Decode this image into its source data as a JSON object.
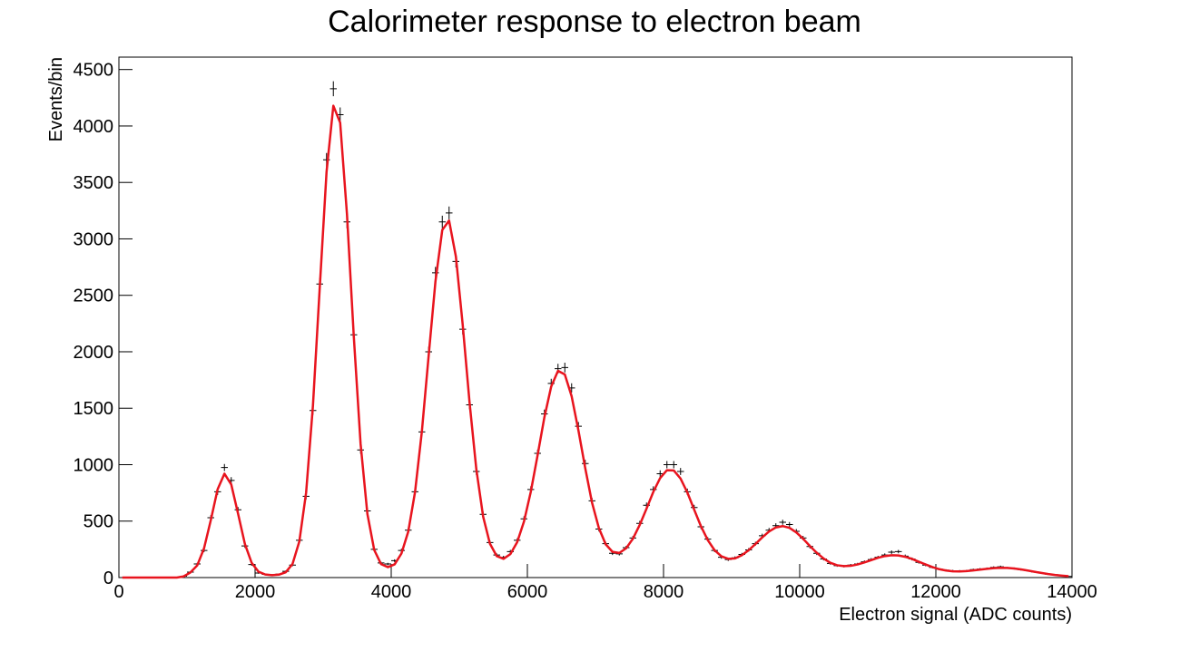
{
  "chart_data": {
    "type": "histogram",
    "title": "Calorimeter response to electron beam",
    "x_label": "Electron signal (ADC counts)",
    "y_label": "Events/bin",
    "xlim": [
      0,
      14000
    ],
    "ylim": [
      0,
      4610
    ],
    "xticks": [
      0,
      2000,
      4000,
      6000,
      8000,
      10000,
      12000,
      14000
    ],
    "yticks": [
      0,
      500,
      1000,
      1500,
      2000,
      2500,
      3000,
      3500,
      4000,
      4500
    ],
    "x": [
      50,
      150,
      250,
      350,
      450,
      550,
      650,
      750,
      850,
      950,
      1050,
      1150,
      1250,
      1350,
      1450,
      1550,
      1650,
      1750,
      1850,
      1950,
      2050,
      2150,
      2250,
      2350,
      2450,
      2550,
      2650,
      2750,
      2850,
      2950,
      3050,
      3150,
      3250,
      3350,
      3450,
      3550,
      3650,
      3750,
      3850,
      3950,
      4050,
      4150,
      4250,
      4350,
      4450,
      4550,
      4650,
      4750,
      4850,
      4950,
      5050,
      5150,
      5250,
      5350,
      5450,
      5550,
      5650,
      5750,
      5850,
      5950,
      6050,
      6150,
      6250,
      6350,
      6450,
      6550,
      6650,
      6750,
      6850,
      6950,
      7050,
      7150,
      7250,
      7350,
      7450,
      7550,
      7650,
      7750,
      7850,
      7950,
      8050,
      8150,
      8250,
      8350,
      8450,
      8550,
      8650,
      8750,
      8850,
      8950,
      9050,
      9150,
      9250,
      9350,
      9450,
      9550,
      9650,
      9750,
      9850,
      9950,
      10050,
      10150,
      10250,
      10350,
      10450,
      10550,
      10650,
      10750,
      10850,
      10950,
      11050,
      11150,
      11250,
      11350,
      11450,
      11550,
      11650,
      11750,
      11850,
      11950,
      12050,
      12150,
      12250,
      12350,
      12450,
      12550,
      12650,
      12750,
      12850,
      12950,
      13050,
      13150,
      13250,
      13350,
      13450,
      13550,
      13650,
      13750,
      13850,
      13950
    ],
    "series": [
      {
        "type": "errorbar",
        "color": "#000000",
        "values": [
          0,
          0,
          0,
          0,
          0,
          0,
          0,
          0,
          0,
          12,
          48,
          120,
          240,
          530,
          760,
          975,
          860,
          600,
          280,
          115,
          40,
          28,
          25,
          30,
          55,
          110,
          330,
          720,
          1480,
          2600,
          3700,
          4330,
          4100,
          3150,
          2150,
          1130,
          590,
          250,
          130,
          120,
          150,
          240,
          420,
          760,
          1290,
          2000,
          2700,
          3150,
          3230,
          2800,
          2200,
          1530,
          940,
          560,
          310,
          200,
          180,
          230,
          330,
          520,
          780,
          1100,
          1450,
          1720,
          1850,
          1860,
          1680,
          1340,
          1010,
          680,
          430,
          300,
          215,
          210,
          265,
          350,
          480,
          640,
          780,
          920,
          1000,
          1000,
          940,
          760,
          620,
          450,
          340,
          240,
          180,
          160,
          175,
          205,
          245,
          300,
          370,
          420,
          460,
          490,
          470,
          410,
          350,
          275,
          215,
          165,
          125,
          105,
          100,
          110,
          120,
          140,
          160,
          180,
          200,
          225,
          230,
          190,
          165,
          135,
          110,
          90,
          75,
          65,
          60,
          58,
          60,
          70,
          75,
          80,
          90,
          95,
          85,
          80,
          70,
          60,
          50,
          40,
          30,
          25,
          18,
          10
        ],
        "errors": [
          0,
          0,
          0,
          0,
          0,
          0,
          0,
          0,
          0,
          3,
          7,
          11,
          15,
          23,
          28,
          31,
          29,
          24,
          17,
          11,
          6,
          5,
          5,
          5,
          7,
          10,
          18,
          27,
          38,
          51,
          61,
          66,
          64,
          56,
          46,
          34,
          24,
          16,
          11,
          11,
          12,
          15,
          20,
          28,
          36,
          45,
          52,
          56,
          57,
          53,
          47,
          39,
          31,
          24,
          18,
          14,
          13,
          15,
          18,
          23,
          28,
          33,
          38,
          41,
          43,
          43,
          41,
          37,
          32,
          26,
          21,
          17,
          15,
          14,
          16,
          19,
          22,
          25,
          28,
          30,
          32,
          32,
          31,
          28,
          25,
          21,
          18,
          15,
          13,
          13,
          13,
          14,
          16,
          17,
          19,
          20,
          21,
          22,
          22,
          20,
          19,
          17,
          15,
          13,
          11,
          10,
          10,
          10,
          11,
          12,
          13,
          13,
          14,
          15,
          15,
          14,
          13,
          12,
          10,
          9,
          9,
          8,
          8,
          8,
          8,
          8,
          9,
          9,
          9,
          10,
          9,
          9,
          8,
          8,
          7,
          6,
          5,
          5,
          4,
          3
        ]
      },
      {
        "type": "line",
        "color": "#e8141e",
        "values": [
          0,
          0,
          0,
          0,
          0,
          0,
          0,
          0,
          0,
          10,
          45,
          107,
          258,
          509,
          782,
          920,
          825,
          566,
          299,
          130,
          52,
          27,
          21,
          26,
          47,
          120,
          319,
          753,
          1521,
          2567,
          3593,
          4179,
          4029,
          3219,
          2138,
          1185,
          563,
          245,
          120,
          92,
          117,
          213,
          407,
          758,
          1293,
          1966,
          2625,
          3079,
          3162,
          2843,
          2240,
          1555,
          960,
          541,
          300,
          190,
          166,
          208,
          313,
          496,
          759,
          1083,
          1420,
          1692,
          1831,
          1799,
          1606,
          1303,
          969,
          663,
          439,
          295,
          228,
          218,
          259,
          344,
          466,
          610,
          759,
          881,
          951,
          949,
          877,
          753,
          602,
          454,
          332,
          242,
          188,
          166,
          170,
          198,
          242,
          297,
          356,
          408,
          444,
          456,
          440,
          400,
          344,
          279,
          220,
          169,
          131,
          109,
          101,
          104,
          116,
          134,
          154,
          175,
          190,
          198,
          196,
          184,
          165,
          140,
          116,
          93,
          74,
          62,
          55,
          54,
          57,
          63,
          70,
          77,
          83,
          86,
          85,
          80,
          72,
          62,
          51,
          41,
          31,
          23,
          17,
          12
        ]
      }
    ]
  }
}
